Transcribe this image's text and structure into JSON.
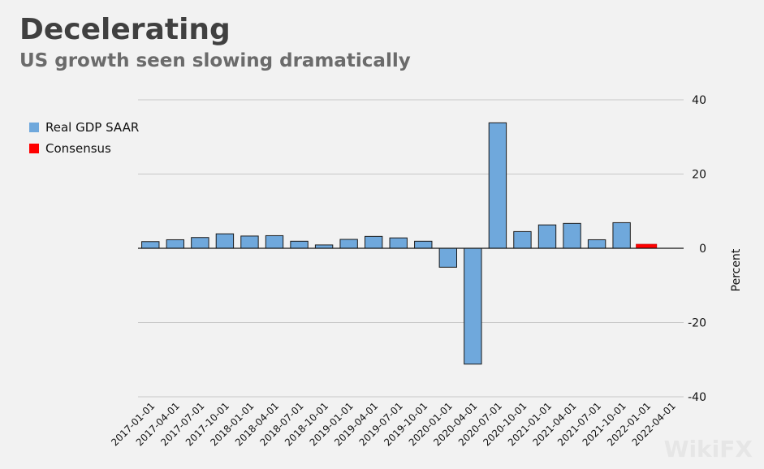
{
  "title": "Decelerating",
  "subtitle": "US growth seen slowing dramatically",
  "watermark": "WikiFX",
  "colors": {
    "gdp": "#6fa8dc",
    "consensus": "#ff0000",
    "grid": "#c8c8c8",
    "background": "#f2f2f2"
  },
  "legend": [
    {
      "label": "Real GDP SAAR",
      "color": "#6fa8dc"
    },
    {
      "label": "Consensus",
      "color": "#ff0000"
    }
  ],
  "chart_data": {
    "type": "bar",
    "categories": [
      "2017-01-01",
      "2017-04-01",
      "2017-07-01",
      "2017-10-01",
      "2018-01-01",
      "2018-04-01",
      "2018-07-01",
      "2018-10-01",
      "2019-01-01",
      "2019-04-01",
      "2019-07-01",
      "2019-10-01",
      "2020-01-01",
      "2020-04-01",
      "2020-07-01",
      "2020-10-01",
      "2021-01-01",
      "2021-04-01",
      "2021-07-01",
      "2021-10-01",
      "2022-01-01",
      "2022-04-01"
    ],
    "series": [
      {
        "name": "Real GDP SAAR",
        "values": [
          1.8,
          2.3,
          2.9,
          3.9,
          3.3,
          3.4,
          1.9,
          0.9,
          2.4,
          3.2,
          2.8,
          1.9,
          -5.1,
          -31.2,
          33.8,
          4.5,
          6.3,
          6.7,
          2.3,
          6.9,
          null,
          null
        ]
      },
      {
        "name": "Consensus",
        "values": [
          null,
          null,
          null,
          null,
          null,
          null,
          null,
          null,
          null,
          null,
          null,
          null,
          null,
          null,
          null,
          null,
          null,
          null,
          null,
          null,
          1.1,
          null
        ]
      }
    ],
    "title": "Decelerating",
    "subtitle": "US growth seen slowing dramatically",
    "xlabel": "",
    "ylabel": "Percent",
    "ylim": [
      -40,
      40
    ],
    "yticks": [
      40,
      20,
      0,
      -20,
      -40
    ],
    "ytick_labels": [
      "40",
      "20",
      "0",
      "-20",
      "-40"
    ],
    "grid": true,
    "legend_position": "top-left",
    "y_axis_side": "right"
  }
}
